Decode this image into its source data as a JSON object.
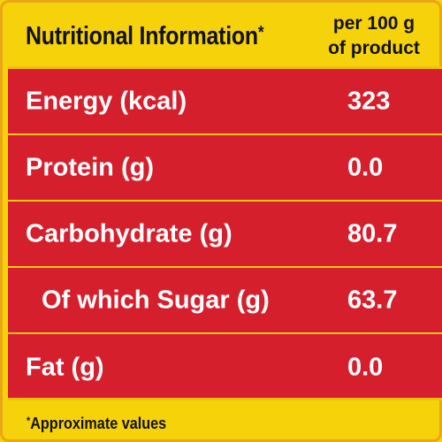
{
  "header": {
    "title": "Nutritional Information",
    "title_mark": "*",
    "per_line1": "per 100 g",
    "per_line2": "of product"
  },
  "rows": [
    {
      "label": "Energy (kcal)",
      "value": "323"
    },
    {
      "label": "Protein (g)",
      "value": "0.0"
    },
    {
      "label": "Carbohydrate (g)",
      "value": "80.7"
    },
    {
      "label": "Of which Sugar (g)",
      "value": "63.7"
    },
    {
      "label": "Fat (g)",
      "value": "0.0"
    }
  ],
  "footnote": {
    "mark": "*",
    "text": "Approximate values"
  },
  "colors": {
    "background": "#f6d20a",
    "table": "#d61f2d",
    "divider": "#f3c915",
    "text_dark": "#111111",
    "text_light": "#ffffff"
  }
}
